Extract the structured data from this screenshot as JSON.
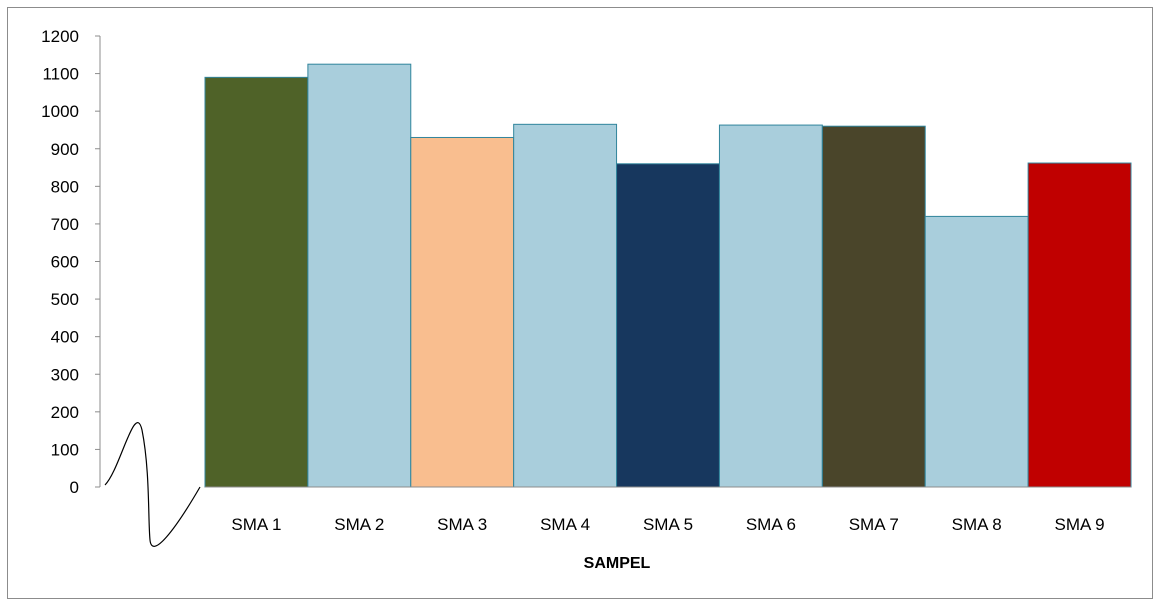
{
  "chart_data": {
    "type": "bar",
    "title": "",
    "xlabel": "SAMPEL",
    "ylabel": "",
    "categories": [
      "SMA 1",
      "SMA 2",
      "SMA 3",
      "SMA 4",
      "SMA 5",
      "SMA 6",
      "SMA 7",
      "SMA 8",
      "SMA 9"
    ],
    "values": [
      1090,
      1125,
      930,
      965,
      860,
      963,
      960,
      720,
      862
    ],
    "colors": [
      "#4f6228",
      "#a9cedc",
      "#f9be8f",
      "#a9cedc",
      "#17375e",
      "#a9cedc",
      "#4a452a",
      "#a9cedc",
      "#c00000"
    ],
    "bar_edge_color": "#31859c",
    "ylim": [
      0,
      1200
    ],
    "yticks": [
      0,
      100,
      200,
      300,
      400,
      500,
      600,
      700,
      800,
      900,
      1000,
      1100,
      1200
    ],
    "grid": false,
    "legend": "none",
    "axis_break": true
  }
}
